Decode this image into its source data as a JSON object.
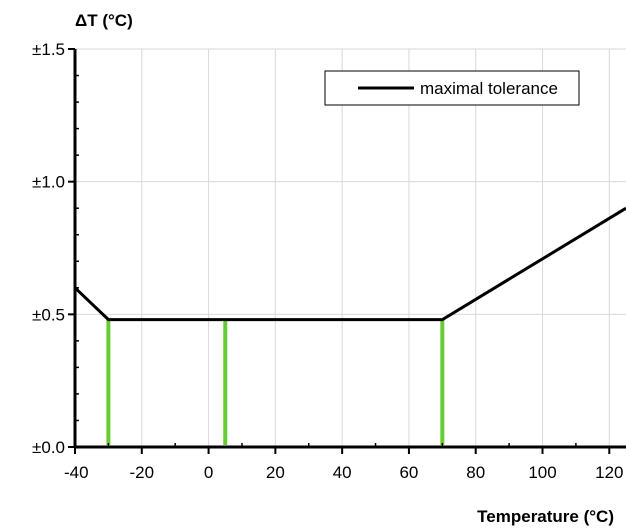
{
  "chart_data": {
    "type": "line",
    "title": "",
    "ylabel": "ΔT (°C)",
    "xlabel": "Temperature (°C)",
    "xlim": [
      -40,
      125
    ],
    "ylim": [
      0,
      1.5
    ],
    "x_ticks": [
      -40,
      -20,
      0,
      20,
      40,
      60,
      80,
      100,
      120
    ],
    "x_tick_labels": [
      "-40",
      "-20",
      "0",
      "20",
      "40",
      "60",
      "80",
      "100",
      "120"
    ],
    "y_ticks": [
      0,
      0.5,
      1.0,
      1.5
    ],
    "y_tick_labels": [
      "±0.0",
      "±0.5",
      "±1.0",
      "±1.5"
    ],
    "grid": true,
    "legend": {
      "position": "top-right",
      "entries": [
        "maximal tolerance"
      ]
    },
    "series": [
      {
        "name": "maximal tolerance",
        "color": "#000000",
        "x": [
          -40,
          -30,
          70,
          125
        ],
        "y": [
          0.6,
          0.48,
          0.48,
          0.9
        ]
      }
    ],
    "markers": {
      "color": "#66cc33",
      "x": [
        -30,
        5,
        70
      ],
      "y_top": 0.48
    }
  }
}
